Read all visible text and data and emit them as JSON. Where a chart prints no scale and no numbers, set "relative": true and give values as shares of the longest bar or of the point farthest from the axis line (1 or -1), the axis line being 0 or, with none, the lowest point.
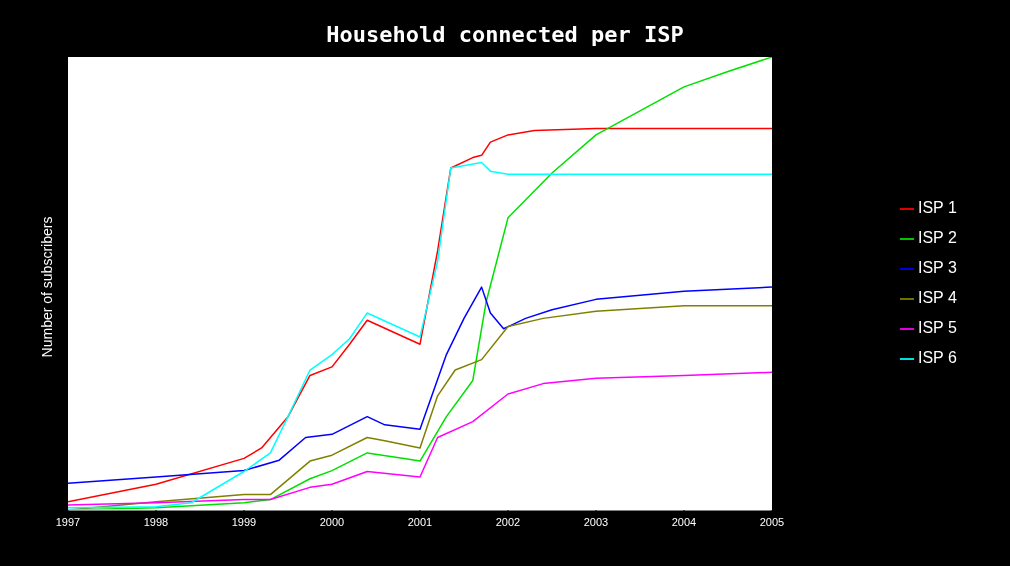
{
  "chart_data": {
    "type": "line",
    "title": "Household connected per ISP",
    "ylabel": "Number of subscribers",
    "relative": true,
    "xlim": [
      1997,
      2005
    ],
    "xticks": [
      1997,
      1998,
      1999,
      2000,
      2001,
      2002,
      2003,
      2004,
      2005
    ],
    "legend": "right",
    "grid": false,
    "series": [
      {
        "name": "ISP 1",
        "color": "#ff0000",
        "x": [
          1997,
          1998,
          1999,
          1999.2,
          1999.5,
          1999.75,
          2000,
          2000.2,
          2000.4,
          2001,
          2001.2,
          2001.35,
          2001.6,
          2001.7,
          2001.8,
          2002,
          2002.3,
          2003,
          2005
        ],
        "values": [
          0.018,
          0.057,
          0.114,
          0.137,
          0.206,
          0.297,
          0.316,
          0.366,
          0.419,
          0.366,
          0.572,
          0.755,
          0.778,
          0.783,
          0.812,
          0.828,
          0.838,
          0.842,
          0.842
        ]
      },
      {
        "name": "ISP 2",
        "color": "#00e000",
        "x": [
          1997,
          1998,
          1999,
          1999.3,
          1999.75,
          2000,
          2000.4,
          2000.8,
          2001,
          2001.3,
          2001.6,
          2001.75,
          2002,
          2002.5,
          2003,
          2003.5,
          2004,
          2004.5,
          2005
        ],
        "values": [
          0,
          0.005,
          0.016,
          0.023,
          0.069,
          0.087,
          0.126,
          0.114,
          0.108,
          0.206,
          0.286,
          0.458,
          0.645,
          0.744,
          0.828,
          0.881,
          0.934,
          0.968,
          1
        ]
      },
      {
        "name": "ISP 3",
        "color": "#0000ff",
        "x": [
          1997,
          1998,
          1999,
          1999.4,
          1999.7,
          2000,
          2000.4,
          2000.6,
          2001,
          2001.3,
          2001.5,
          2001.7,
          2001.8,
          2001.95,
          2002.2,
          2002.5,
          2003,
          2004,
          2005
        ],
        "values": [
          0.059,
          0.073,
          0.087,
          0.11,
          0.16,
          0.167,
          0.206,
          0.188,
          0.178,
          0.343,
          0.423,
          0.492,
          0.435,
          0.4,
          0.423,
          0.442,
          0.465,
          0.483,
          0.492
        ]
      },
      {
        "name": "ISP 4",
        "color": "#808000",
        "x": [
          1997,
          1998,
          1999,
          1999.3,
          1999.75,
          2000,
          2000.4,
          2000.6,
          2001,
          2001.2,
          2001.4,
          2001.7,
          2002,
          2002.4,
          2003,
          2004,
          2005
        ],
        "values": [
          0,
          0.018,
          0.034,
          0.034,
          0.108,
          0.121,
          0.16,
          0.153,
          0.137,
          0.252,
          0.309,
          0.332,
          0.405,
          0.423,
          0.439,
          0.451,
          0.451
        ]
      },
      {
        "name": "ISP 5",
        "color": "#ff00ff",
        "x": [
          1997,
          1998,
          1999,
          1999.3,
          1999.75,
          2000,
          2000.4,
          2001,
          2001.2,
          2001.6,
          2002,
          2002.4,
          2003,
          2004,
          2005
        ],
        "values": [
          0.011,
          0.016,
          0.023,
          0.023,
          0.05,
          0.057,
          0.085,
          0.073,
          0.16,
          0.195,
          0.256,
          0.279,
          0.291,
          0.297,
          0.304
        ]
      },
      {
        "name": "ISP 6",
        "color": "#00ffff",
        "x": [
          1997,
          1998,
          1998.4,
          1999,
          1999.3,
          1999.5,
          1999.75,
          2000,
          2000.2,
          2000.4,
          2001,
          2001.2,
          2001.35,
          2001.7,
          2001.8,
          2002,
          2005
        ],
        "values": [
          0.005,
          0.007,
          0.016,
          0.085,
          0.126,
          0.206,
          0.309,
          0.343,
          0.378,
          0.435,
          0.382,
          0.549,
          0.755,
          0.767,
          0.748,
          0.741,
          0.741
        ]
      }
    ]
  }
}
